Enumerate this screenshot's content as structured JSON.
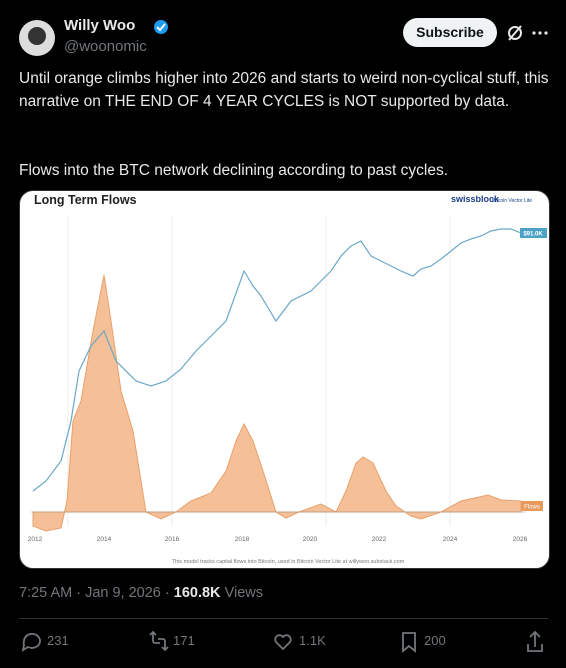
{
  "author": {
    "name": "Willy Woo",
    "handle": "@woonomic"
  },
  "subscribe": "Subscribe",
  "text": [
    "Until orange climbs higher into 2026 and starts to weird non-cyclical stuff, this narrative on THE END OF 4 YEAR CYCLES is NOT supported by data.",
    "Flows into the BTC network declining according to past cycles."
  ],
  "image": {
    "title": "Long Term Flows",
    "brand": "swissblock",
    "brand_sub": "Bitcoin Vector Lite",
    "price_label": "$91.0K",
    "flows_label": "Flows",
    "years": [
      "2012",
      "2014",
      "2016",
      "2018",
      "2020",
      "2022",
      "2024",
      "2026"
    ],
    "footnote": "This model tracks capital flows into Bitcoin, used in Bitcoin Vector Lite at willywoo.substack.com"
  },
  "meta": {
    "time": "7:25 AM · Jan 9, 2026 · ",
    "views": "160.8K",
    "views_label": "Views"
  },
  "actions": {
    "replies": "231",
    "reposts": "171",
    "likes": "1.1K",
    "bookmarks": "200"
  }
}
